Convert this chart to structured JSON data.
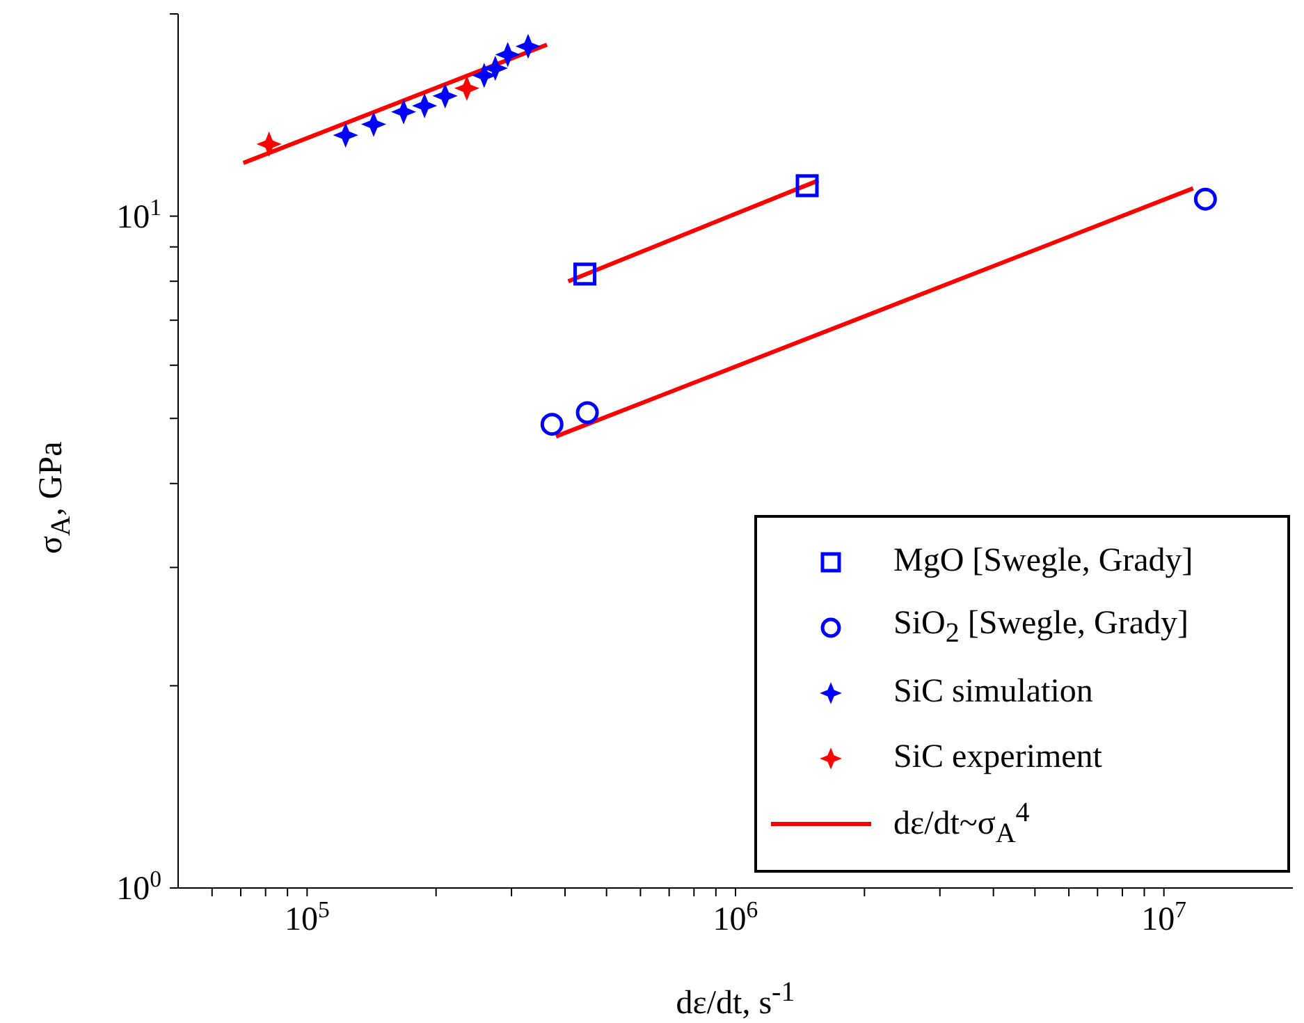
{
  "chart_data": {
    "type": "scatter",
    "xlabel": "dε/dt, s$^{-1}$",
    "ylabel": "σ$_{A}$, GPa",
    "log": "xy",
    "legend": "bottom right",
    "xlim": [
      50000,
      20000000
    ],
    "xticks": [
      {
        "value": 60000,
        "label": null
      },
      {
        "value": 70000,
        "label": null
      },
      {
        "value": 80000,
        "label": null
      },
      {
        "value": 90000,
        "label": null
      },
      {
        "value": 100000,
        "label": "10$^{5}$"
      },
      {
        "value": 200000,
        "label": null
      },
      {
        "value": 300000,
        "label": null
      },
      {
        "value": 400000,
        "label": null
      },
      {
        "value": 500000,
        "label": null
      },
      {
        "value": 600000,
        "label": null
      },
      {
        "value": 700000,
        "label": null
      },
      {
        "value": 800000,
        "label": null
      },
      {
        "value": 900000,
        "label": null
      },
      {
        "value": 1000000,
        "label": "10$^{6}$"
      },
      {
        "value": 2000000,
        "label": null
      },
      {
        "value": 3000000,
        "label": null
      },
      {
        "value": 4000000,
        "label": null
      },
      {
        "value": 5000000,
        "label": null
      },
      {
        "value": 6000000,
        "label": null
      },
      {
        "value": 7000000,
        "label": null
      },
      {
        "value": 8000000,
        "label": null
      },
      {
        "value": 9000000,
        "label": null
      },
      {
        "value": 10000000,
        "label": "10$^{7}$"
      }
    ],
    "ylim": [
      1,
      20
    ],
    "yticks": [
      {
        "value": 1,
        "label": "10$^{0}$"
      },
      {
        "value": 2,
        "label": null
      },
      {
        "value": 3,
        "label": null
      },
      {
        "value": 4,
        "label": null
      },
      {
        "value": 5,
        "label": null
      },
      {
        "value": 6,
        "label": null
      },
      {
        "value": 7,
        "label": null
      },
      {
        "value": 8,
        "label": null
      },
      {
        "value": 9,
        "label": null
      },
      {
        "value": 10,
        "label": "10$^{1}$"
      },
      {
        "value": 20,
        "label": null
      }
    ],
    "series": [
      {
        "name": "MgO [Swegle, Grady]",
        "marker": "square",
        "color": "#0000ff",
        "x": [
          445000,
          1470000
        ],
        "values": [
          8.2,
          11.1
        ]
      },
      {
        "name": "SiO$_{2}$ [Swegle, Grady]",
        "marker": "circle",
        "color": "#0000ff",
        "x": [
          373000,
          451000,
          12500000
        ],
        "values": [
          4.9,
          5.1,
          10.6
        ]
      },
      {
        "name": "SiC simulation",
        "marker": "star",
        "color": "#0000ff",
        "x": [
          123000,
          143000,
          168000,
          188000,
          210000,
          259000,
          275000,
          294000,
          328000
        ],
        "values": [
          13.2,
          13.7,
          14.3,
          14.6,
          15.1,
          16.2,
          16.6,
          17.4,
          17.9
        ]
      },
      {
        "name": "SiC experiment",
        "marker": "star",
        "color": "#ff0000",
        "x": [
          81500,
          236000
        ],
        "values": [
          12.8,
          15.5
        ]
      },
      {
        "name": "dε/dt~σ$_{A}$$^{4}$",
        "type": "line",
        "marker": "none",
        "color": "#ff0000",
        "x": [
          71000,
          363000
        ],
        "values": [
          12.0,
          18.0
        ]
      },
      {
        "type": "line",
        "marker": "none",
        "color": "#ff0000",
        "x": [
          407000,
          1560000
        ],
        "values": [
          8.0,
          11.3
        ]
      },
      {
        "type": "line",
        "marker": "none",
        "color": "#ff0000",
        "x": [
          381000,
          11700000
        ],
        "values": [
          4.7,
          11.0
        ]
      }
    ]
  }
}
